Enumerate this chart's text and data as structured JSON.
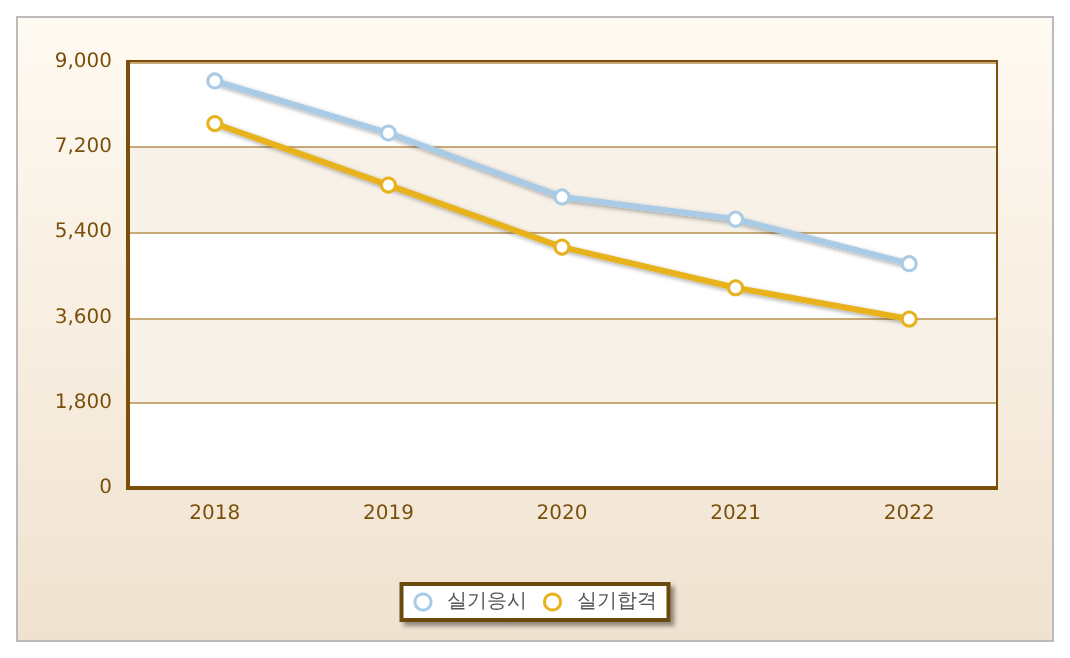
{
  "chart_data": {
    "type": "line",
    "categories": [
      "2018",
      "2019",
      "2020",
      "2021",
      "2022"
    ],
    "series": [
      {
        "name": "실기응시",
        "color": "#a9cbe6",
        "values": [
          8600,
          7500,
          6150,
          5680,
          4740
        ]
      },
      {
        "name": "실기합격",
        "color": "#e8b21c",
        "values": [
          7700,
          6400,
          5090,
          4230,
          3570
        ]
      }
    ],
    "ylim": [
      0,
      9000
    ],
    "yticks": [
      {
        "value": 0,
        "label": "0"
      },
      {
        "value": 1800,
        "label": "1,800"
      },
      {
        "value": 3600,
        "label": "3,600"
      },
      {
        "value": 5400,
        "label": "5,400"
      },
      {
        "value": 7200,
        "label": "7,200"
      },
      {
        "value": 9000,
        "label": "9,000"
      }
    ],
    "grid": "y",
    "legend": "bottom",
    "marker": "circle",
    "line_style": "solid"
  }
}
